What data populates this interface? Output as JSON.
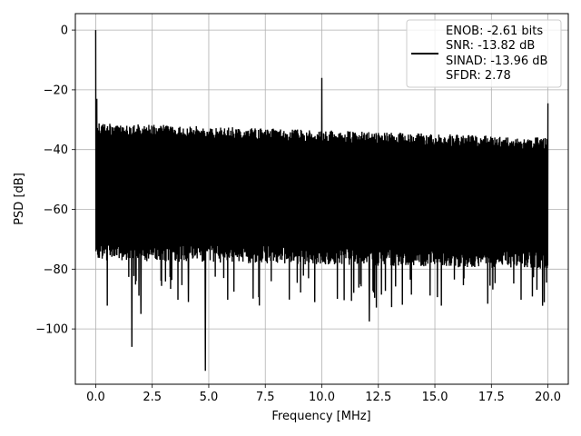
{
  "chart_data": {
    "type": "line",
    "title": "",
    "xlabel": "Frequency [MHz]",
    "ylabel": "PSD [dB]",
    "xlim": [
      -0.9,
      20.9
    ],
    "ylim": [
      -118.5,
      5.5
    ],
    "xticks": [
      0.0,
      2.5,
      5.0,
      7.5,
      10.0,
      12.5,
      15.0,
      17.5,
      20.0
    ],
    "xtick_labels": [
      "0.0",
      "2.5",
      "5.0",
      "7.5",
      "10.0",
      "12.5",
      "15.0",
      "17.5",
      "20.0"
    ],
    "yticks": [
      0,
      -20,
      -40,
      -60,
      -80,
      -100
    ],
    "ytick_labels": [
      "0",
      "−20",
      "−40",
      "−60",
      "−80",
      "−100"
    ],
    "grid": true,
    "legend_position": "upper-right",
    "legend_entries": [
      "ENOB: -2.61 bits",
      "SNR: -13.82 dB",
      "SINAD: -13.96 dB",
      "SFDR: 2.78"
    ],
    "series": [
      {
        "color": "#000000",
        "noise_floor": {
          "x_range": [
            0.0,
            20.0
          ],
          "upper_envelope_db": [
            -31,
            -36
          ],
          "lower_envelope_db": [
            -77,
            -80
          ],
          "typical_low_dips_db": [
            -82,
            -93
          ]
        },
        "spikes": [
          {
            "x": 0.0,
            "y": 0
          },
          {
            "x": 0.05,
            "y": -23
          },
          {
            "x": 10.0,
            "y": -16
          },
          {
            "x": 20.0,
            "y": -24.5
          }
        ],
        "deep_nulls": [
          {
            "x": 0.1,
            "y": -65
          },
          {
            "x": 1.6,
            "y": -106
          },
          {
            "x": 2.0,
            "y": -95
          },
          {
            "x": 4.1,
            "y": -91
          },
          {
            "x": 4.85,
            "y": -114
          },
          {
            "x": 12.1,
            "y": -97.5
          }
        ]
      }
    ]
  }
}
